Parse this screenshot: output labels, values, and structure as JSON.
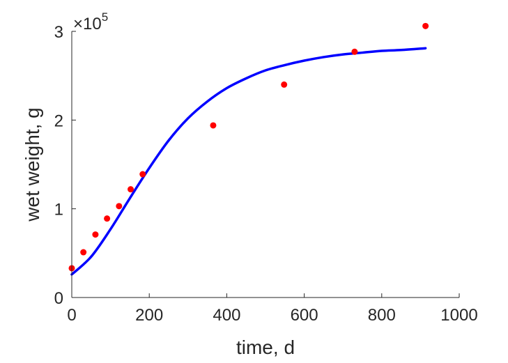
{
  "chart_data": {
    "type": "scatter",
    "xlabel": "time, d",
    "ylabel": "wet weight, g",
    "xlim": [
      0,
      1000
    ],
    "ylim": [
      0,
      3
    ],
    "x_ticks": [
      0,
      200,
      400,
      600,
      800,
      1000
    ],
    "y_ticks": [
      0,
      1,
      2,
      3
    ],
    "y_exponent_label": {
      "prefix": "×10",
      "power": "5"
    },
    "grid": false,
    "series": [
      {
        "kind": "points",
        "color": "#ff0000",
        "x": [
          0,
          30,
          61,
          91,
          122,
          152,
          183,
          365,
          548,
          730,
          913
        ],
        "y": [
          0.33,
          0.51,
          0.71,
          0.89,
          1.03,
          1.22,
          1.39,
          1.94,
          2.4,
          2.77,
          3.06
        ]
      },
      {
        "kind": "line",
        "color": "#0000ff",
        "x": [
          0,
          50,
          100,
          150,
          200,
          250,
          300,
          350,
          400,
          450,
          500,
          550,
          600,
          650,
          700,
          750,
          800,
          850,
          913
        ],
        "y": [
          0.26,
          0.46,
          0.77,
          1.12,
          1.46,
          1.77,
          2.02,
          2.21,
          2.36,
          2.47,
          2.56,
          2.62,
          2.67,
          2.71,
          2.74,
          2.76,
          2.78,
          2.79,
          2.81
        ]
      }
    ]
  }
}
